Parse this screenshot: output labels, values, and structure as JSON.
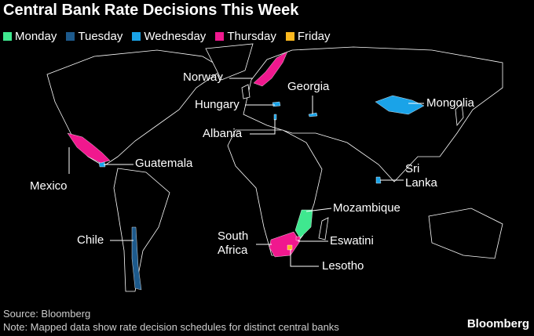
{
  "title": "Central Bank Rate Decisions This Week",
  "legend": [
    {
      "label": "Monday",
      "color": "#3fe88f"
    },
    {
      "label": "Tuesday",
      "color": "#1d5a8c"
    },
    {
      "label": "Wednesday",
      "color": "#1aa3e8"
    },
    {
      "label": "Thursday",
      "color": "#f0188e"
    },
    {
      "label": "Friday",
      "color": "#fbb81f"
    }
  ],
  "countries": [
    {
      "label": "Norway",
      "color": "#f0188e"
    },
    {
      "label": "Georgia",
      "color": "#1aa3e8"
    },
    {
      "label": "Hungary",
      "color": "#1aa3e8"
    },
    {
      "label": "Mongolia",
      "color": "#1aa3e8"
    },
    {
      "label": "Albania",
      "color": "#1aa3e8"
    },
    {
      "label": "Guatemala",
      "color": "#1aa3e8"
    },
    {
      "label": "Mexico",
      "color": "#f0188e"
    },
    {
      "label": "Sri Lanka",
      "color": "#1aa3e8"
    },
    {
      "label": "Mozambique",
      "color": "#3fe88f"
    },
    {
      "label": "Chile",
      "color": "#1d5a8c"
    },
    {
      "label": "South Africa",
      "color": "#f0188e"
    },
    {
      "label": "Eswatini",
      "color": "#f0188e"
    },
    {
      "label": "Lesotho",
      "color": "#fbb81f"
    }
  ],
  "source": "Source: Bloomberg",
  "note": "Note: Mapped data show rate decision schedules for distinct central banks",
  "brand": "Bloomberg"
}
